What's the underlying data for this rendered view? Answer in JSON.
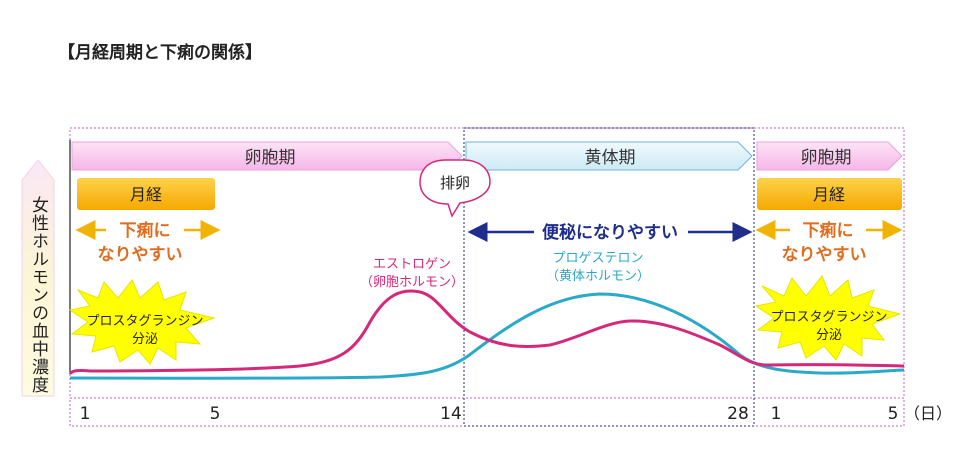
{
  "title": "【月経周期と下痢の関係】",
  "y_axis_label": "女性ホルモンの血中濃度",
  "phases": {
    "follicular": "卵胞期",
    "luteal": "黄体期",
    "follicular_next": "卵胞期"
  },
  "menstruation_label": "月経",
  "ovulation_label": "排卵",
  "diarrhea_label": {
    "line1": "下痢に",
    "line2": "なりやすい"
  },
  "constipation_label": "便秘になりやすい",
  "prostaglandin_label": {
    "line1": "プロスタグランジン",
    "line2": "分泌"
  },
  "hormones": {
    "estrogen": {
      "name": "エストロゲン",
      "sub": "（卵胞ホルモン）",
      "color": "#d6287a"
    },
    "progesterone": {
      "name": "プロゲステロン",
      "sub": "（黄体ホルモン）",
      "color": "#2aa9c9"
    }
  },
  "x_ticks": [
    "1",
    "5",
    "14",
    "28",
    "1",
    "5"
  ],
  "x_unit": "（日）",
  "colors": {
    "phase_pink": "#f9c6ef",
    "phase_blue": "#dff2fb",
    "menstruation": "#ffc000",
    "diarrhea_text": "#e06c1f",
    "constipation": "#1f2d8c",
    "burst": "#ffff00",
    "frame": "#c060c0"
  }
}
